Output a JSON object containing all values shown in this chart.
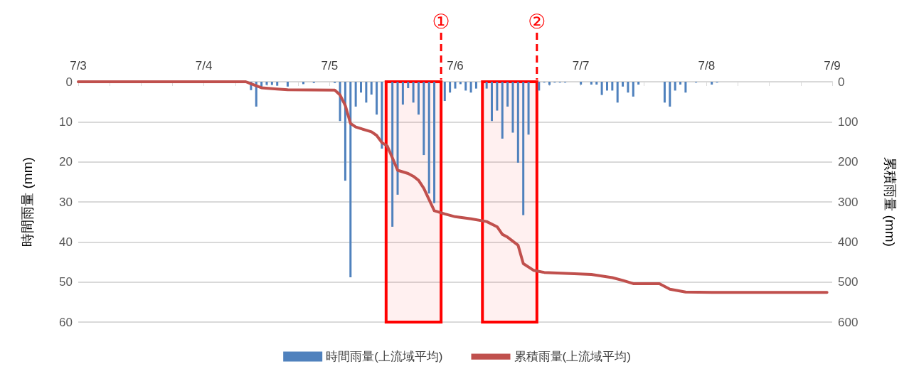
{
  "chart_data": {
    "type": "bar",
    "ylabel": "時間雨量 (mm)",
    "y2label": "累積雨量 (mm)",
    "xlim": [
      "--07-03",
      "--07-09"
    ],
    "xticks": [
      {
        "value": "--07-03",
        "label": "7/3"
      },
      {
        "value": "--07-03T06:00",
        "label": null
      },
      {
        "value": "--07-03T12:00",
        "label": null
      },
      {
        "value": "--07-03T18:00",
        "label": null
      },
      {
        "value": "--07-04",
        "label": "7/4"
      },
      {
        "value": "--07-04T06:00",
        "label": null
      },
      {
        "value": "--07-04T12:00",
        "label": null
      },
      {
        "value": "--07-04T18:00",
        "label": null
      },
      {
        "value": "--07-05",
        "label": "7/5"
      },
      {
        "value": "--07-05T06:00",
        "label": null
      },
      {
        "value": "--07-05T12:00",
        "label": null
      },
      {
        "value": "--07-05T18:00",
        "label": null
      },
      {
        "value": "--07-06",
        "label": "7/6"
      },
      {
        "value": "--07-06T06:00",
        "label": null
      },
      {
        "value": "--07-06T12:00",
        "label": null
      },
      {
        "value": "--07-06T18:00",
        "label": null
      },
      {
        "value": "--07-07",
        "label": "7/7"
      },
      {
        "value": "--07-07T06:00",
        "label": null
      },
      {
        "value": "--07-07T12:00",
        "label": null
      },
      {
        "value": "--07-07T18:00",
        "label": null
      },
      {
        "value": "--07-08",
        "label": "7/8"
      },
      {
        "value": "--07-08T06:00",
        "label": null
      },
      {
        "value": "--07-08T12:00",
        "label": null
      },
      {
        "value": "--07-08T18:00",
        "label": null
      },
      {
        "value": "--07-09",
        "label": "7/9"
      }
    ],
    "ylim": [
      60,
      0
    ],
    "yticks": [
      0,
      10,
      20,
      30,
      40,
      50,
      60
    ],
    "y2lim": [
      600,
      0
    ],
    "y2ticks": [
      0,
      100,
      200,
      300,
      400,
      500,
      600
    ],
    "grid": "y",
    "legend": "bottom",
    "series": [
      {
        "name": "時間雨量(上流域平均)",
        "color": "#4f81bd",
        "x": [
          "--07-04T09:00",
          "--07-04T10:00",
          "--07-04T11:00",
          "--07-04T12:00",
          "--07-04T13:00",
          "--07-04T14:00",
          "--07-04T16:00",
          "--07-04T19:00",
          "--07-04T21:00",
          "--07-05T01:00",
          "--07-05T02:00",
          "--07-05T03:00",
          "--07-05T04:00",
          "--07-05T05:00",
          "--07-05T06:00",
          "--07-05T07:00",
          "--07-05T08:00",
          "--07-05T09:00",
          "--07-05T10:00",
          "--07-05T12:00",
          "--07-05T13:00",
          "--07-05T14:00",
          "--07-05T15:00",
          "--07-05T16:00",
          "--07-05T17:00",
          "--07-05T18:00",
          "--07-05T19:00",
          "--07-05T20:00",
          "--07-05T22:00",
          "--07-05T23:00",
          "--07-06T00:00",
          "--07-06T01:00",
          "--07-06T02:00",
          "--07-06T03:00",
          "--07-06T04:00",
          "--07-06T06:00",
          "--07-06T07:00",
          "--07-06T08:00",
          "--07-06T09:00",
          "--07-06T10:00",
          "--07-06T11:00",
          "--07-06T12:00",
          "--07-06T13:00",
          "--07-06T14:00",
          "--07-06T16:00",
          "--07-06T17:00",
          "--07-06T18:00",
          "--07-06T19:00",
          "--07-06T20:00",
          "--07-06T21:00",
          "--07-07T00:00",
          "--07-07T02:00",
          "--07-07T03:00",
          "--07-07T04:00",
          "--07-07T05:00",
          "--07-07T06:00",
          "--07-07T07:00",
          "--07-07T08:00",
          "--07-07T09:00",
          "--07-07T10:00",
          "--07-07T11:00",
          "--07-07T16:00",
          "--07-07T17:00",
          "--07-07T18:00",
          "--07-07T19:00",
          "--07-07T20:00",
          "--07-07T22:00",
          "--07-08T01:00",
          "--07-08T02:00"
        ],
        "values": [
          2.1,
          6.2,
          1.6,
          0.8,
          0.8,
          1.0,
          1.2,
          0.6,
          0.3,
          0.3,
          9.8,
          24.7,
          48.8,
          6.2,
          2.7,
          5.2,
          3.2,
          8.2,
          16.7,
          36.2,
          28.2,
          5.7,
          1.6,
          5.2,
          8.2,
          18.3,
          27.9,
          30.3,
          4.8,
          2.7,
          1.7,
          0.6,
          2.2,
          2.7,
          1.7,
          1.7,
          9.8,
          7.2,
          14.2,
          6.2,
          12.7,
          20.2,
          33.3,
          13.2,
          2.2,
          0.2,
          0.8,
          0.2,
          0.2,
          0.2,
          0.7,
          0.7,
          0.7,
          3.3,
          2.2,
          2.2,
          5.2,
          1.2,
          2.7,
          3.7,
          0.7,
          5.2,
          6.2,
          2.2,
          0.7,
          2.7,
          0.2,
          0.7,
          0.2
        ]
      },
      {
        "name": "累積雨量(上流域平均)",
        "type": "line",
        "axis": "y2",
        "color": "#c0504d",
        "marker": "none",
        "x": [
          "--07-03T00:00",
          "--07-04T08:00",
          "--07-04T09:00",
          "--07-04T11:00",
          "--07-04T14:00",
          "--07-04T16:00",
          "--07-05T01:00",
          "--07-05T02:00",
          "--07-05T03:00",
          "--07-05T04:00",
          "--07-05T05:00",
          "--07-05T08:00",
          "--07-05T09:00",
          "--07-05T10:00",
          "--07-05T11:00",
          "--07-05T12:00",
          "--07-05T13:00",
          "--07-05T15:00",
          "--07-05T16:00",
          "--07-05T17:00",
          "--07-05T18:00",
          "--07-05T20:00",
          "--07-05T22:00",
          "--07-06T00:00",
          "--07-06T03:00",
          "--07-06T06:00",
          "--07-06T08:00",
          "--07-06T09:00",
          "--07-06T10:00",
          "--07-06T12:00",
          "--07-06T13:00",
          "--07-06T15:00",
          "--07-06T17:00",
          "--07-07T02:00",
          "--07-07T06:00",
          "--07-07T08:00",
          "--07-07T10:00",
          "--07-07T15:00",
          "--07-07T17:00",
          "--07-07T20:00",
          "--07-08T01:00",
          "--07-08T23:00"
        ],
        "values": [
          0,
          0,
          5,
          15,
          18,
          20,
          21,
          33,
          59,
          104,
          113,
          125,
          134,
          152,
          160,
          190,
          221,
          229,
          236,
          246,
          266,
          322,
          330,
          337,
          342,
          349,
          362,
          381,
          388,
          408,
          454,
          471,
          476,
          481,
          489,
          496,
          504,
          504,
          518,
          525,
          526,
          526
        ]
      }
    ],
    "bands": [
      {
        "axis": "x",
        "from": "--07-05T10:48",
        "to": "--07-05T21:18",
        "color": "#ff0000"
      },
      {
        "axis": "x",
        "from": "--07-06T05:12",
        "to": "--07-06T15:36",
        "color": "#ff0000"
      }
    ],
    "ref_lines": [
      {
        "axis": "x",
        "value": "--07-05T21:18",
        "label": "①",
        "color": "#ff0000",
        "line_style": "dashed"
      },
      {
        "axis": "x",
        "value": "--07-06T15:36",
        "label": "②",
        "color": "#ff0000",
        "line_style": "dashed"
      }
    ]
  }
}
